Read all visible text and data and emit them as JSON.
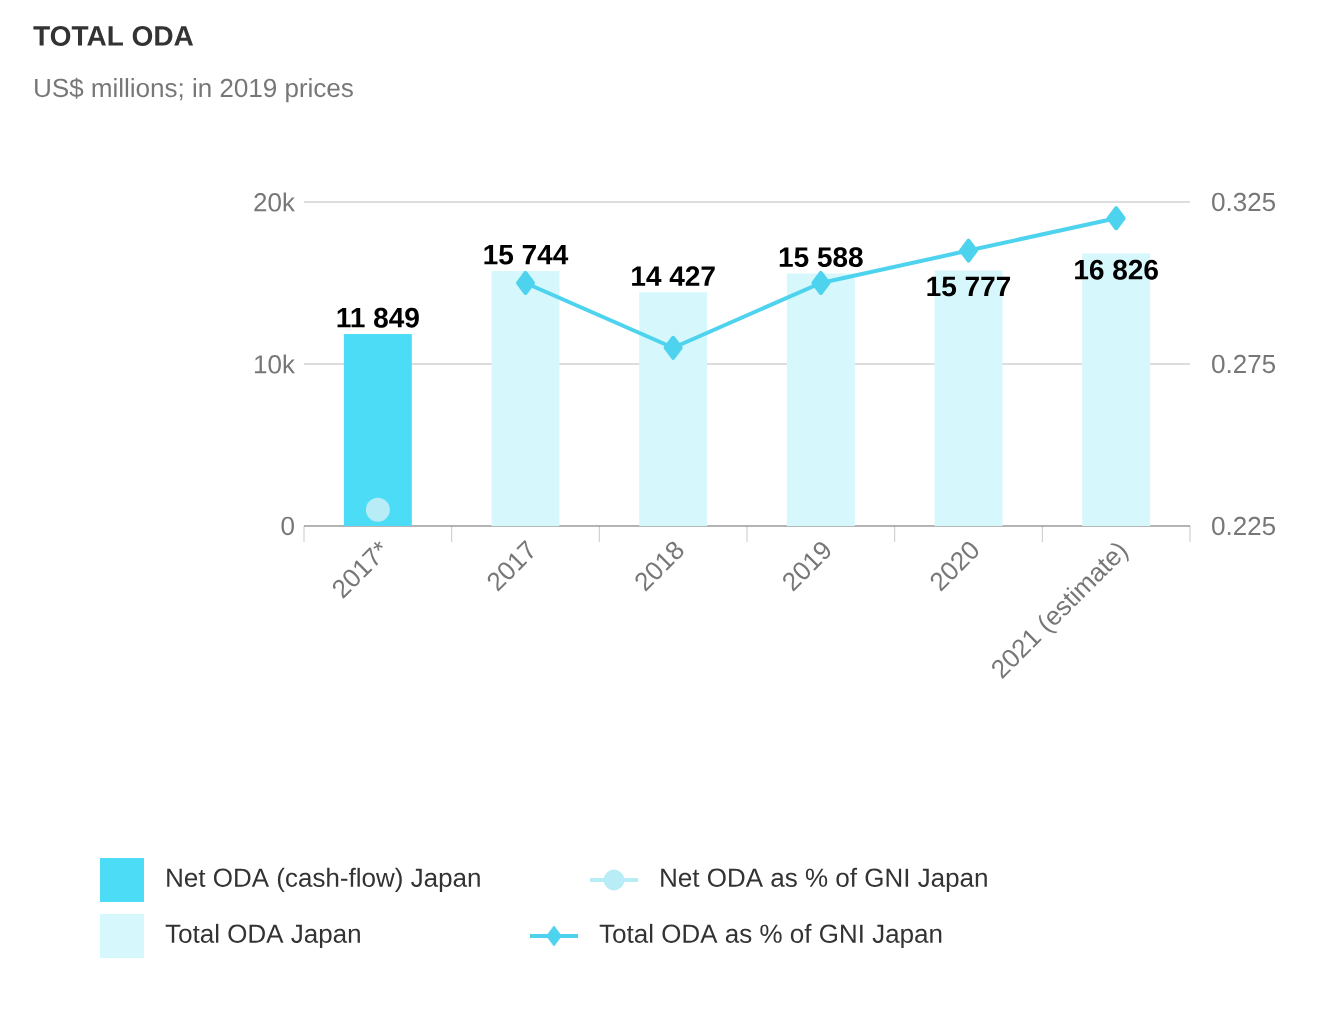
{
  "chart_data": {
    "type": "bar",
    "title": "TOTAL ODA",
    "subtitle": "US$ millions; in 2019 prices",
    "categories": [
      "2017*",
      "2017",
      "2018",
      "2019",
      "2020",
      "2021 (estimate)"
    ],
    "series": [
      {
        "name": "Net ODA (cash-flow) Japan",
        "color": "#4ddcf5",
        "values": [
          11849,
          null,
          null,
          null,
          null,
          null
        ],
        "value_labels": [
          "11 849",
          null,
          null,
          null,
          null,
          null
        ]
      },
      {
        "name": "Total ODA Japan",
        "color": "#d6f7fc",
        "values": [
          null,
          15744,
          14427,
          15588,
          15777,
          16826
        ],
        "value_labels": [
          null,
          "15 744",
          "14 427",
          "15 588",
          "15 777",
          "16 826"
        ]
      },
      {
        "name": "Net ODA as % of GNI Japan",
        "type": "line",
        "axis": "y2",
        "marker": "circle",
        "color": "#b8ecf7",
        "values": [
          0.23,
          null,
          null,
          null,
          null,
          null
        ]
      },
      {
        "name": "Total ODA as % of GNI Japan",
        "type": "line",
        "axis": "y2",
        "marker": "diamond",
        "color": "#4dd3ee",
        "values": [
          null,
          0.3,
          0.28,
          0.3,
          0.31,
          0.32
        ]
      }
    ],
    "ylim": [
      0,
      20000
    ],
    "yticks": [
      {
        "value": 0,
        "label": "0"
      },
      {
        "value": 10000,
        "label": "10k"
      },
      {
        "value": 20000,
        "label": "20k"
      }
    ],
    "y2lim": [
      0.225,
      0.325
    ],
    "y2ticks": [
      0.225,
      0.275,
      0.325
    ],
    "grid": "y",
    "legend": "bottom"
  }
}
